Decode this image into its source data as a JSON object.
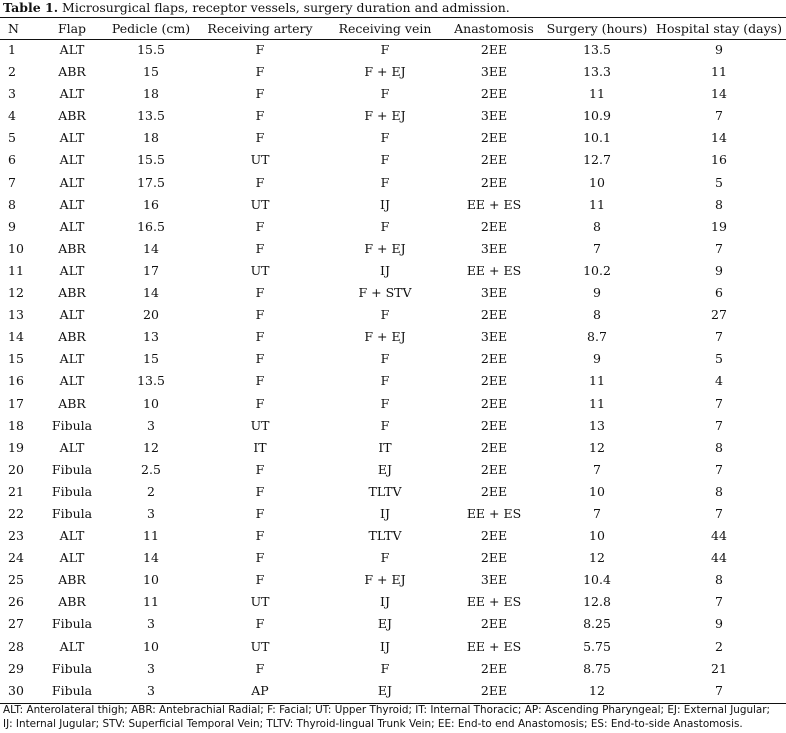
{
  "caption": {
    "label": "Table 1.",
    "text": "Microsurgical flaps, receptor vessels, surgery duration and admission."
  },
  "columns": [
    "N",
    "Flap",
    "Pedicle (cm)",
    "Receiving artery",
    "Receiving vein",
    "Anastomosis",
    "Surgery (hours)",
    "Hospital stay (days)"
  ],
  "rows": [
    [
      "1",
      "ALT",
      "15.5",
      "F",
      "F",
      "2EE",
      "13.5",
      "9"
    ],
    [
      "2",
      "ABR",
      "15",
      "F",
      "F + EJ",
      "3EE",
      "13.3",
      "11"
    ],
    [
      "3",
      "ALT",
      "18",
      "F",
      "F",
      "2EE",
      "11",
      "14"
    ],
    [
      "4",
      "ABR",
      "13.5",
      "F",
      "F + EJ",
      "3EE",
      "10.9",
      "7"
    ],
    [
      "5",
      "ALT",
      "18",
      "F",
      "F",
      "2EE",
      "10.1",
      "14"
    ],
    [
      "6",
      "ALT",
      "15.5",
      "UT",
      "F",
      "2EE",
      "12.7",
      "16"
    ],
    [
      "7",
      "ALT",
      "17.5",
      "F",
      "F",
      "2EE",
      "10",
      "5"
    ],
    [
      "8",
      "ALT",
      "16",
      "UT",
      "IJ",
      "EE + ES",
      "11",
      "8"
    ],
    [
      "9",
      "ALT",
      "16.5",
      "F",
      "F",
      "2EE",
      "8",
      "19"
    ],
    [
      "10",
      "ABR",
      "14",
      "F",
      "F + EJ",
      "3EE",
      "7",
      "7"
    ],
    [
      "11",
      "ALT",
      "17",
      "UT",
      "IJ",
      "EE + ES",
      "10.2",
      "9"
    ],
    [
      "12",
      "ABR",
      "14",
      "F",
      "F + STV",
      "3EE",
      "9",
      "6"
    ],
    [
      "13",
      "ALT",
      "20",
      "F",
      "F",
      "2EE",
      "8",
      "27"
    ],
    [
      "14",
      "ABR",
      "13",
      "F",
      "F + EJ",
      "3EE",
      "8.7",
      "7"
    ],
    [
      "15",
      "ALT",
      "15",
      "F",
      "F",
      "2EE",
      "9",
      "5"
    ],
    [
      "16",
      "ALT",
      "13.5",
      "F",
      "F",
      "2EE",
      "11",
      "4"
    ],
    [
      "17",
      "ABR",
      "10",
      "F",
      "F",
      "2EE",
      "11",
      "7"
    ],
    [
      "18",
      "Fibula",
      "3",
      "UT",
      "F",
      "2EE",
      "13",
      "7"
    ],
    [
      "19",
      "ALT",
      "12",
      "IT",
      "IT",
      "2EE",
      "12",
      "8"
    ],
    [
      "20",
      "Fibula",
      "2.5",
      "F",
      "EJ",
      "2EE",
      "7",
      "7"
    ],
    [
      "21",
      "Fibula",
      "2",
      "F",
      "TLTV",
      "2EE",
      "10",
      "8"
    ],
    [
      "22",
      "Fibula",
      "3",
      "F",
      "IJ",
      "EE + ES",
      "7",
      "7"
    ],
    [
      "23",
      "ALT",
      "11",
      "F",
      "TLTV",
      "2EE",
      "10",
      "44"
    ],
    [
      "24",
      "ALT",
      "14",
      "F",
      "F",
      "2EE",
      "12",
      "44"
    ],
    [
      "25",
      "ABR",
      "10",
      "F",
      "F + EJ",
      "3EE",
      "10.4",
      "8"
    ],
    [
      "26",
      "ABR",
      "11",
      "UT",
      "IJ",
      "EE + ES",
      "12.8",
      "7"
    ],
    [
      "27",
      "Fibula",
      "3",
      "F",
      "EJ",
      "2EE",
      "8.25",
      "9"
    ],
    [
      "28",
      "ALT",
      "10",
      "UT",
      "IJ",
      "EE + ES",
      "5.75",
      "2"
    ],
    [
      "29",
      "Fibula",
      "3",
      "F",
      "F",
      "2EE",
      "8.75",
      "21"
    ],
    [
      "30",
      "Fibula",
      "3",
      "AP",
      "EJ",
      "2EE",
      "12",
      "7"
    ]
  ],
  "footnote": {
    "line1": "ALT: Anterolateral thigh; ABR: Antebrachial Radial; F: Facial; UT: Upper Thyroid; IT: Internal Thoracic; AP: Ascending Pharyngeal; EJ: External Jugular;",
    "line2": "IJ: Internal Jugular; STV: Superficial Temporal Vein; TLTV: Thyroid-lingual Trunk Vein; EE: End-to end Anastomosis; ES: End-to-side Anastomosis."
  }
}
